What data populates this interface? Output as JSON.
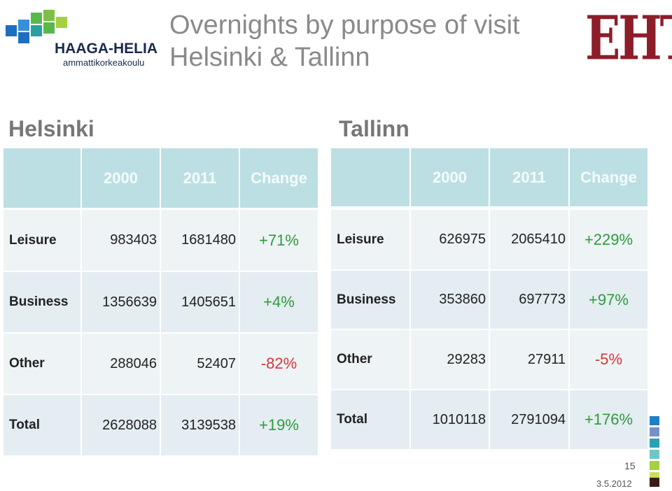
{
  "header": {
    "title_lines": [
      "Overnights by purpose of visit",
      "Helsinki & Tallinn"
    ],
    "logo_left": {
      "name": "HAAGA-HELIA",
      "subtitle": "ammattikorkeakoulu"
    },
    "logo_right": "EHTE"
  },
  "tables": [
    {
      "title": "Helsinki",
      "columns": [
        "2000",
        "2011",
        "Change"
      ],
      "rows": [
        [
          "Leisure",
          983403,
          1681480,
          "+71%"
        ],
        [
          "Business",
          1356639,
          1405651,
          "+4%"
        ],
        [
          "Other",
          288046,
          52407,
          "-82%"
        ],
        [
          "Total",
          2628088,
          3139538,
          "+19%"
        ]
      ]
    },
    {
      "title": "Tallinn",
      "columns": [
        "2000",
        "2011",
        "Change"
      ],
      "rows": [
        [
          "Leisure",
          626975,
          2065410,
          "+229%"
        ],
        [
          "Business",
          353860,
          697773,
          "+97%"
        ],
        [
          "Other",
          29283,
          27911,
          "-5%"
        ],
        [
          "Total",
          1010118,
          2791094,
          "+176%"
        ]
      ]
    }
  ],
  "footer": {
    "page": "15",
    "date": "3.5.2012"
  }
}
